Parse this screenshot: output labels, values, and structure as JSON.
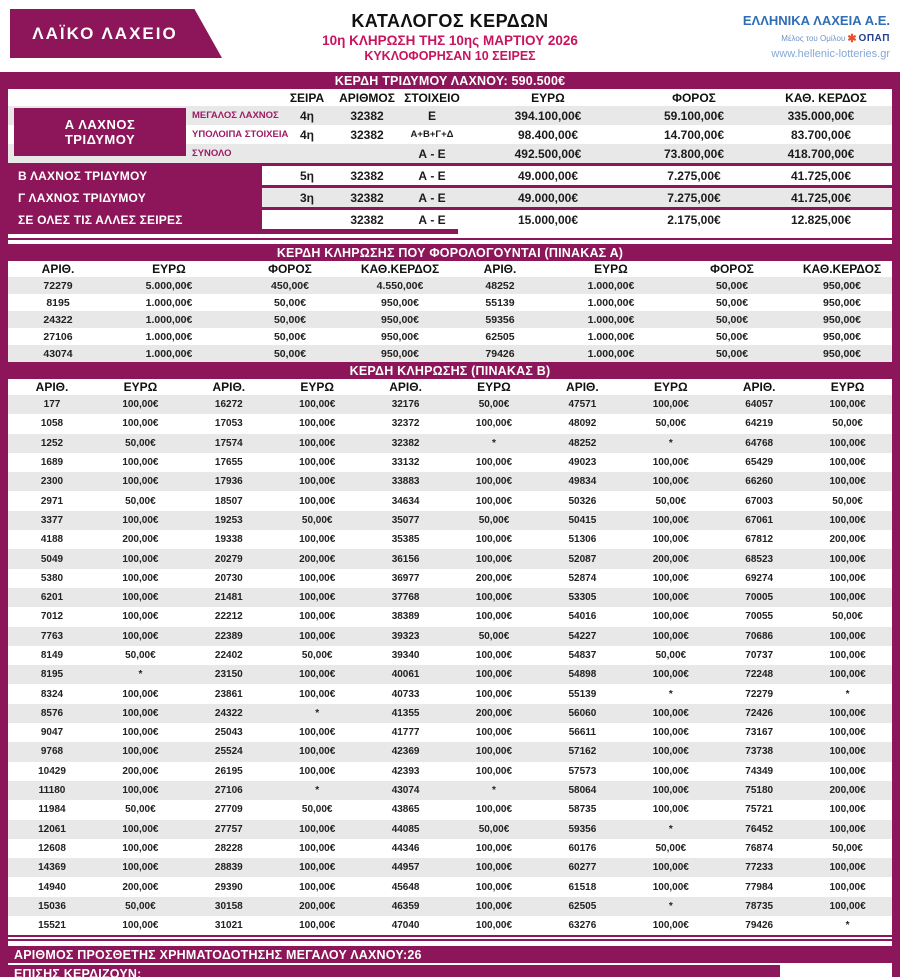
{
  "header": {
    "logo_text": "ΛΑΪΚΟ ΛΑΧΕΙΟ",
    "title": "ΚΑΤΑΛΟΓΟΣ ΚΕΡΔΩΝ",
    "subtitle": "10η ΚΛΗΡΩΣΗ ΤΗΣ 10ης ΜΑΡΤΙΟΥ 2026",
    "circulation": "ΚΥΚΛΟΦΟΡΗΣΑΝ 10 ΣΕΙΡΕΣ",
    "company": "ΕΛΛΗΝΙΚΑ ΛΑΧΕΙΑ Α.Ε.",
    "member_of": "Μέλος του Ομίλου",
    "opap": "ΟΠΑΠ",
    "website": "www.hellenic-lotteries.gr"
  },
  "colors": {
    "accent": "#8C1659",
    "crimson": "#C9135E",
    "stripe": "#e8e8e8",
    "blue": "#2F6DB5"
  },
  "banners": {
    "triplet": "ΚΕΡΔΗ ΤΡΙΔΥΜΟΥ ΛΑΧΝΟΥ: 590.500€",
    "tableA": "ΚΕΡΔΗ ΚΛΗΡΩΣΗΣ ΠΟΥ ΦΟΡΟΛΟΓΟΥΝΤΑΙ (ΠΙΝΑΚΑΣ Α)",
    "tableB": "ΚΕΡΔΗ ΚΛΗΡΩΣΗΣ (ΠΙΝΑΚΑΣ Β)"
  },
  "table1": {
    "headers": [
      "ΣΕΙΡΑ",
      "ΑΡΙΘΜΟΣ",
      "ΣΤΟΙΧΕΙΟ",
      "ΕΥΡΩ",
      "ΦΟΡΟΣ",
      "ΚΑΘ. ΚΕΡΔΟΣ"
    ],
    "group_a": {
      "line1": "Α ΛΑΧΝΟΣ",
      "line2": "ΤΡΙΔΥΜΟΥ"
    },
    "rows": [
      {
        "label": "ΜΕΓΑΛΟΣ ΛΑΧΝΟΣ",
        "seira": "4η",
        "arithmos": "32382",
        "stoixeio": "Ε",
        "euro": "394.100,00€",
        "foros": "59.100,00€",
        "katharo": "335.000,00€"
      },
      {
        "label": "ΥΠΟΛΟΙΠΑ ΣΤΟΙΧΕΙΑ",
        "seira": "4η",
        "arithmos": "32382",
        "stoixeio": "Α+Β+Γ+Δ",
        "euro": "98.400,00€",
        "foros": "14.700,00€",
        "katharo": "83.700,00€"
      },
      {
        "label": "ΣΥΝΟΛΟ",
        "seira": "",
        "arithmos": "",
        "stoixeio": "Α - Ε",
        "euro": "492.500,00€",
        "foros": "73.800,00€",
        "katharo": "418.700,00€"
      },
      {
        "label": "Β ΛΑΧΝΟΣ ΤΡΙΔΥΜΟΥ",
        "seira": "5η",
        "arithmos": "32382",
        "stoixeio": "Α - Ε",
        "euro": "49.000,00€",
        "foros": "7.275,00€",
        "katharo": "41.725,00€"
      },
      {
        "label": "Γ ΛΑΧΝΟΣ ΤΡΙΔΥΜΟΥ",
        "seira": "3η",
        "arithmos": "32382",
        "stoixeio": "Α - Ε",
        "euro": "49.000,00€",
        "foros": "7.275,00€",
        "katharo": "41.725,00€"
      },
      {
        "label": "ΣΕ ΟΛΕΣ ΤΙΣ ΑΛΛΕΣ ΣΕΙΡΕΣ",
        "seira": "",
        "arithmos": "32382",
        "stoixeio": "Α - Ε",
        "euro": "15.000,00€",
        "foros": "2.175,00€",
        "katharo": "12.825,00€"
      }
    ]
  },
  "tableA": {
    "headers": [
      "ΑΡΙΘ.",
      "ΕΥΡΩ",
      "ΦΟΡΟΣ",
      "ΚΑΘ.ΚΕΡΔΟΣ"
    ],
    "rows": [
      [
        "72279",
        "5.000,00€",
        "450,00€",
        "4.550,00€",
        "48252",
        "1.000,00€",
        "50,00€",
        "950,00€"
      ],
      [
        "8195",
        "1.000,00€",
        "50,00€",
        "950,00€",
        "55139",
        "1.000,00€",
        "50,00€",
        "950,00€"
      ],
      [
        "24322",
        "1.000,00€",
        "50,00€",
        "950,00€",
        "59356",
        "1.000,00€",
        "50,00€",
        "950,00€"
      ],
      [
        "27106",
        "1.000,00€",
        "50,00€",
        "950,00€",
        "62505",
        "1.000,00€",
        "50,00€",
        "950,00€"
      ],
      [
        "43074",
        "1.000,00€",
        "50,00€",
        "950,00€",
        "79426",
        "1.000,00€",
        "50,00€",
        "950,00€"
      ]
    ]
  },
  "tableB": {
    "headers": [
      "ΑΡΙΘ.",
      "ΕΥΡΩ"
    ],
    "rows": [
      [
        "177",
        "100,00€",
        "16272",
        "100,00€",
        "32176",
        "50,00€",
        "47571",
        "100,00€",
        "64057",
        "100,00€"
      ],
      [
        "1058",
        "100,00€",
        "17053",
        "100,00€",
        "32372",
        "100,00€",
        "48092",
        "50,00€",
        "64219",
        "50,00€"
      ],
      [
        "1252",
        "50,00€",
        "17574",
        "100,00€",
        "32382",
        "*",
        "48252",
        "*",
        "64768",
        "100,00€"
      ],
      [
        "1689",
        "100,00€",
        "17655",
        "100,00€",
        "33132",
        "100,00€",
        "49023",
        "100,00€",
        "65429",
        "100,00€"
      ],
      [
        "2300",
        "100,00€",
        "17936",
        "100,00€",
        "33883",
        "100,00€",
        "49834",
        "100,00€",
        "66260",
        "100,00€"
      ],
      [
        "2971",
        "50,00€",
        "18507",
        "100,00€",
        "34634",
        "100,00€",
        "50326",
        "50,00€",
        "67003",
        "50,00€"
      ],
      [
        "3377",
        "100,00€",
        "19253",
        "50,00€",
        "35077",
        "50,00€",
        "50415",
        "100,00€",
        "67061",
        "100,00€"
      ],
      [
        "4188",
        "200,00€",
        "19338",
        "100,00€",
        "35385",
        "100,00€",
        "51306",
        "100,00€",
        "67812",
        "200,00€"
      ],
      [
        "5049",
        "100,00€",
        "20279",
        "200,00€",
        "36156",
        "100,00€",
        "52087",
        "200,00€",
        "68523",
        "100,00€"
      ],
      [
        "5380",
        "100,00€",
        "20730",
        "100,00€",
        "36977",
        "200,00€",
        "52874",
        "100,00€",
        "69274",
        "100,00€"
      ],
      [
        "6201",
        "100,00€",
        "21481",
        "100,00€",
        "37768",
        "100,00€",
        "53305",
        "100,00€",
        "70005",
        "100,00€"
      ],
      [
        "7012",
        "100,00€",
        "22212",
        "100,00€",
        "38389",
        "100,00€",
        "54016",
        "100,00€",
        "70055",
        "50,00€"
      ],
      [
        "7763",
        "100,00€",
        "22389",
        "100,00€",
        "39323",
        "50,00€",
        "54227",
        "100,00€",
        "70686",
        "100,00€"
      ],
      [
        "8149",
        "50,00€",
        "22402",
        "50,00€",
        "39340",
        "100,00€",
        "54837",
        "50,00€",
        "70737",
        "100,00€"
      ],
      [
        "8195",
        "*",
        "23150",
        "100,00€",
        "40061",
        "100,00€",
        "54898",
        "100,00€",
        "72248",
        "100,00€"
      ],
      [
        "8324",
        "100,00€",
        "23861",
        "100,00€",
        "40733",
        "100,00€",
        "55139",
        "*",
        "72279",
        "*"
      ],
      [
        "8576",
        "100,00€",
        "24322",
        "*",
        "41355",
        "200,00€",
        "56060",
        "100,00€",
        "72426",
        "100,00€"
      ],
      [
        "9047",
        "100,00€",
        "25043",
        "100,00€",
        "41777",
        "100,00€",
        "56611",
        "100,00€",
        "73167",
        "100,00€"
      ],
      [
        "9768",
        "100,00€",
        "25524",
        "100,00€",
        "42369",
        "100,00€",
        "57162",
        "100,00€",
        "73738",
        "100,00€"
      ],
      [
        "10429",
        "200,00€",
        "26195",
        "100,00€",
        "42393",
        "100,00€",
        "57573",
        "100,00€",
        "74349",
        "100,00€"
      ],
      [
        "11180",
        "100,00€",
        "27106",
        "*",
        "43074",
        "*",
        "58064",
        "100,00€",
        "75180",
        "200,00€"
      ],
      [
        "11984",
        "50,00€",
        "27709",
        "50,00€",
        "43865",
        "100,00€",
        "58735",
        "100,00€",
        "75721",
        "100,00€"
      ],
      [
        "12061",
        "100,00€",
        "27757",
        "100,00€",
        "44085",
        "50,00€",
        "59356",
        "*",
        "76452",
        "100,00€"
      ],
      [
        "12608",
        "100,00€",
        "28228",
        "100,00€",
        "44346",
        "100,00€",
        "60176",
        "50,00€",
        "76874",
        "50,00€"
      ],
      [
        "14369",
        "100,00€",
        "28839",
        "100,00€",
        "44957",
        "100,00€",
        "60277",
        "100,00€",
        "77233",
        "100,00€"
      ],
      [
        "14940",
        "200,00€",
        "29390",
        "100,00€",
        "45648",
        "100,00€",
        "61518",
        "100,00€",
        "77984",
        "100,00€"
      ],
      [
        "15036",
        "50,00€",
        "30158",
        "200,00€",
        "46359",
        "100,00€",
        "62505",
        "*",
        "78735",
        "100,00€"
      ],
      [
        "15521",
        "100,00€",
        "31021",
        "100,00€",
        "47040",
        "100,00€",
        "63276",
        "100,00€",
        "79426",
        "*"
      ]
    ]
  },
  "footer": {
    "funding_note": "ΑΡΙΘΜΟΣ ΠΡΟΣΘΕΤΗΣ ΧΡΗΜΑΤΟΔΟΤΗΣΗΣ ΜΕΓΑΛΟΥ ΛΑΧΝΟΥ:26",
    "also_win": "ΕΠΙΣΗΣ ΚΕΡΔΙΖΟΥΝ:"
  }
}
